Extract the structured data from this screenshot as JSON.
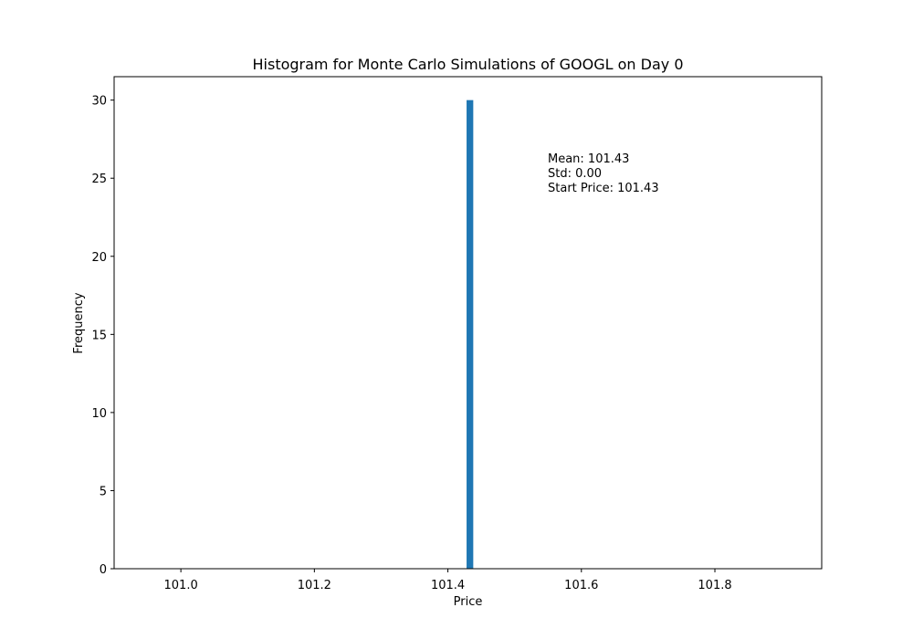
{
  "chart_data": {
    "type": "bar",
    "title": "Histogram for Monte Carlo Simulations of GOOGL on Day 0",
    "xlabel": "Price",
    "ylabel": "Frequency",
    "xlim": [
      100.9,
      101.96
    ],
    "ylim": [
      0,
      31.5
    ],
    "x_ticks": [
      101.0,
      101.2,
      101.4,
      101.6,
      101.8
    ],
    "x_tick_labels": [
      "101.0",
      "101.2",
      "101.4",
      "101.6",
      "101.8"
    ],
    "y_ticks": [
      0,
      5,
      10,
      15,
      20,
      25,
      30
    ],
    "y_tick_labels": [
      "0",
      "5",
      "10",
      "15",
      "20",
      "25",
      "30"
    ],
    "bins": [
      {
        "start": 101.428,
        "end": 101.438,
        "count": 30
      }
    ],
    "bar_color": "#1f77b4",
    "grid": false,
    "annotation": {
      "lines": [
        "Mean: 101.43",
        "Std: 0.00",
        "Start Price: 101.43"
      ]
    }
  }
}
